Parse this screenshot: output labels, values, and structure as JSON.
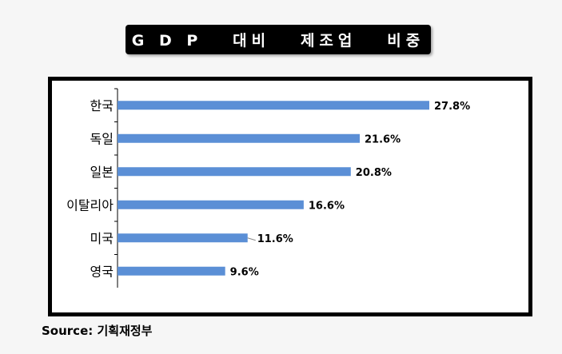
{
  "chart_data": {
    "type": "bar",
    "orientation": "horizontal",
    "title": "G D P   대비   제조업   비중",
    "categories": [
      "한국",
      "독일",
      "일본",
      "이탈리아",
      "미국",
      "영국"
    ],
    "values": [
      27.8,
      21.6,
      20.8,
      16.6,
      11.6,
      9.6
    ],
    "value_labels": [
      "27.8%",
      "21.6%",
      "20.8%",
      "16.6%",
      "11.6%",
      "9.6%"
    ],
    "xlim": [
      0,
      30
    ],
    "grid": false,
    "legend": "none",
    "bar_color": "#5b8fd6"
  },
  "source": "Source:  기획재정부"
}
